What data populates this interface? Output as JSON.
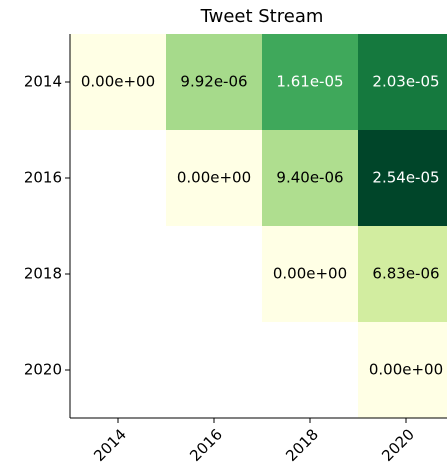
{
  "chart_data": {
    "type": "heatmap",
    "title": "Tweet Stream",
    "x_categories": [
      "2014",
      "2016",
      "2018",
      "2020"
    ],
    "y_categories": [
      "2014",
      "2016",
      "2018",
      "2020"
    ],
    "values": [
      [
        0,
        9.92e-06,
        1.61e-05,
        2.03e-05
      ],
      [
        null,
        0,
        9.4e-06,
        2.54e-05
      ],
      [
        null,
        null,
        0,
        6.83e-06
      ],
      [
        null,
        null,
        null,
        0
      ]
    ],
    "value_labels": [
      [
        "0.00e+00",
        "9.92e-06",
        "1.61e-05",
        "2.03e-05"
      ],
      [
        null,
        "0.00e+00",
        "9.40e-06",
        "2.54e-05"
      ],
      [
        null,
        null,
        "0.00e+00",
        "6.83e-06"
      ],
      [
        null,
        null,
        null,
        "0.00e+00"
      ]
    ],
    "colormap": [
      "#ffffe5",
      "#f7fcb9",
      "#d9f0a3",
      "#addd8e",
      "#78c679",
      "#41ab5d",
      "#238443",
      "#006837",
      "#004529"
    ],
    "clim": [
      0,
      2.54e-05
    ]
  }
}
